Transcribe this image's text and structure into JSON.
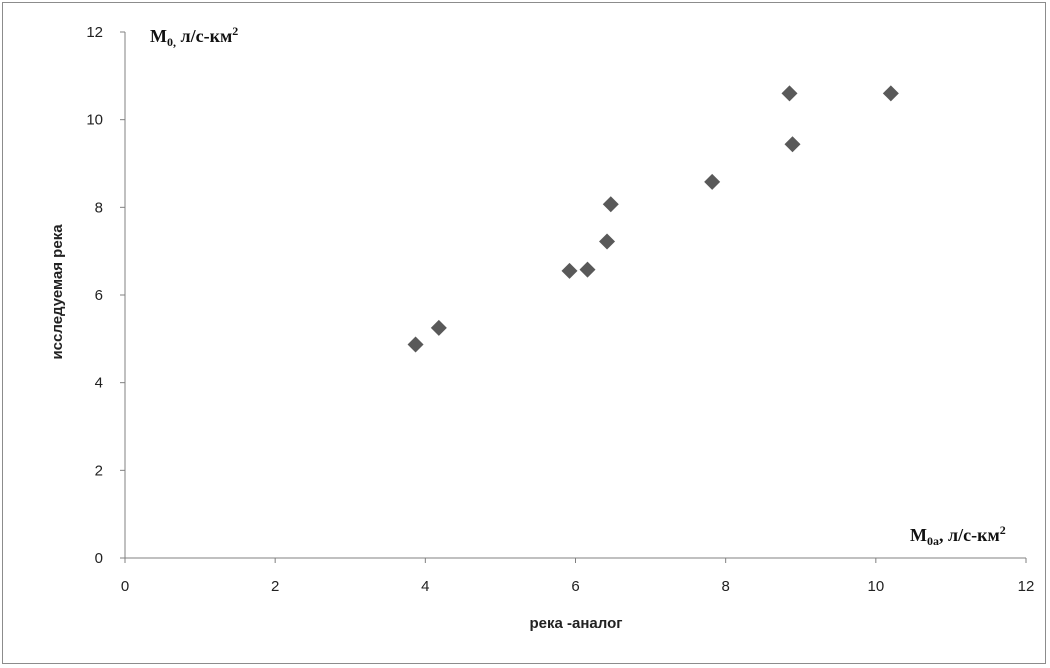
{
  "chart_data": {
    "type": "scatter",
    "xlabel": "река -аналог",
    "ylabel": "исследуемая река",
    "xlim": [
      0,
      12
    ],
    "ylim": [
      0,
      12
    ],
    "x_ticks": [
      "0",
      "2",
      "4",
      "6",
      "8",
      "10",
      "12"
    ],
    "y_ticks": [
      "0",
      "2",
      "4",
      "6",
      "8",
      "10",
      "12"
    ],
    "grid": false,
    "marker": "diamond",
    "marker_color": "#595959",
    "y_unit_label": {
      "main": "M",
      "sub": "0,",
      "rest": " л/с-км",
      "sup": "2"
    },
    "x_unit_label": {
      "main": "M",
      "sub": "0a",
      "rest": ", л/с-км",
      "sup": "2"
    },
    "points": [
      {
        "x": 3.87,
        "y": 4.87
      },
      {
        "x": 4.18,
        "y": 5.25
      },
      {
        "x": 5.92,
        "y": 6.55
      },
      {
        "x": 6.16,
        "y": 6.58
      },
      {
        "x": 6.42,
        "y": 7.22
      },
      {
        "x": 6.47,
        "y": 8.07
      },
      {
        "x": 7.82,
        "y": 8.58
      },
      {
        "x": 8.85,
        "y": 10.6
      },
      {
        "x": 8.89,
        "y": 9.44
      },
      {
        "x": 10.2,
        "y": 10.6
      }
    ]
  }
}
